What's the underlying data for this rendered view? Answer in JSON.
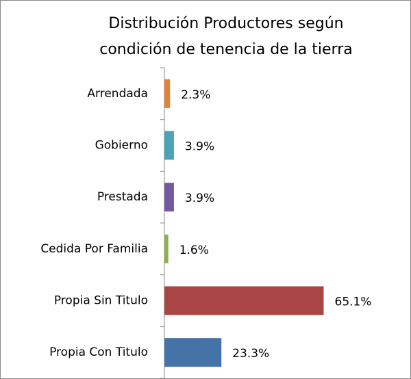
{
  "chart_data": {
    "type": "bar",
    "orientation": "horizontal",
    "title": [
      "Distribución Productores según",
      "condición de tenencia de la tierra"
    ],
    "categories": [
      "Arrendada",
      "Gobierno",
      "Prestada",
      "Cedida Por Familia",
      "Propia Sin Titulo",
      "Propia Con Titulo"
    ],
    "values": [
      2.3,
      3.9,
      3.9,
      1.6,
      65.1,
      23.3
    ],
    "value_labels": [
      "2.3%",
      "3.9%",
      "3.9%",
      "1.6%",
      "65.1%",
      "23.3%"
    ],
    "colors": [
      "#e0843c",
      "#4aa3b8",
      "#7458a0",
      "#8fb050",
      "#a94545",
      "#4573a8"
    ],
    "xlim": [
      0,
      70
    ]
  }
}
